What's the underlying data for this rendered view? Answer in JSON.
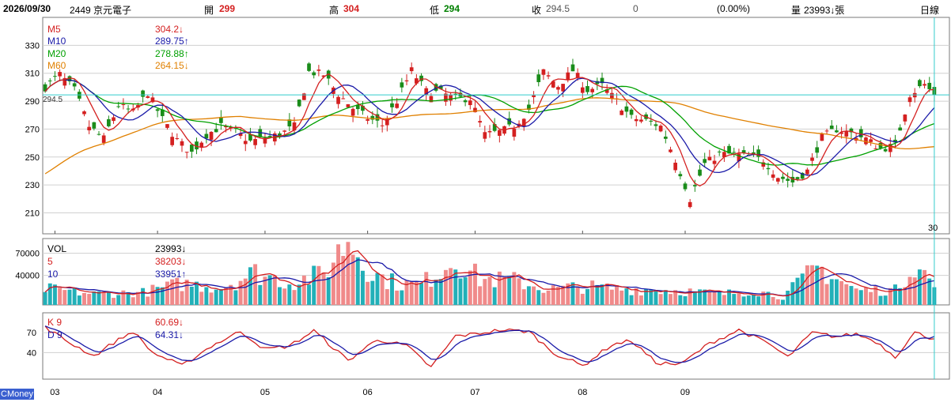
{
  "header": {
    "date": "2026/09/30",
    "stock": "2449 京元電子",
    "open_label": "開",
    "open": "299",
    "high_label": "高",
    "high": "304",
    "low_label": "低",
    "low": "294",
    "close_label": "收",
    "close": "294.5",
    "change": "0",
    "change_pct": "(0.00%)",
    "volume_label": "量",
    "volume": "23993↓張",
    "period": "日線"
  },
  "price_legend": [
    {
      "label": "M5",
      "value": "304.2↓",
      "color": "#d42020"
    },
    {
      "label": "M10",
      "value": "289.75↑",
      "color": "#1a1aa8"
    },
    {
      "label": "M20",
      "value": "278.88↑",
      "color": "#00a000"
    },
    {
      "label": "M60",
      "value": "264.15↓",
      "color": "#e08000"
    }
  ],
  "vol_legend": [
    {
      "label": "VOL",
      "value": "23993↓",
      "color": "#000000"
    },
    {
      "label": "5",
      "value": "38203↓",
      "color": "#d42020"
    },
    {
      "label": "10",
      "value": "33951↑",
      "color": "#1a1aa8"
    }
  ],
  "kd_legend": [
    {
      "label": "K 9",
      "value": "60.69↓",
      "color": "#d42020"
    },
    {
      "label": "D 9",
      "value": "64.31↓",
      "color": "#1a1aa8"
    }
  ],
  "price_marker": "294.5",
  "last_day_label": "30",
  "brand": "CMoney",
  "colors": {
    "up": "#d42020",
    "down": "#1a8c1a",
    "vol_up": "#f08a8a",
    "vol_down": "#22b0b8",
    "cursor": "#33cccc"
  },
  "chart_data": {
    "type": "candlestick",
    "x_labels": [
      "03",
      "04",
      "05",
      "06",
      "07",
      "08",
      "09"
    ],
    "price_axis": {
      "ticks": [
        210,
        230,
        250,
        270,
        290,
        310,
        330
      ],
      "range": [
        195,
        350
      ]
    },
    "volume_axis": {
      "ticks": [
        40000,
        70000
      ],
      "range": [
        0,
        90000
      ]
    },
    "kd_axis": {
      "ticks": [
        40,
        70
      ],
      "range": [
        0,
        100
      ]
    },
    "price_keypoints": [
      [
        0,
        300
      ],
      [
        3,
        309
      ],
      [
        6,
        298
      ],
      [
        9,
        272
      ],
      [
        12,
        263
      ],
      [
        15,
        287
      ],
      [
        18,
        282
      ],
      [
        21,
        296
      ],
      [
        24,
        277
      ],
      [
        27,
        262
      ],
      [
        30,
        253
      ],
      [
        33,
        266
      ],
      [
        36,
        272
      ],
      [
        39,
        268
      ],
      [
        42,
        261
      ],
      [
        45,
        264
      ],
      [
        48,
        266
      ],
      [
        51,
        272
      ],
      [
        54,
        311
      ],
      [
        57,
        309
      ],
      [
        60,
        295
      ],
      [
        63,
        285
      ],
      [
        66,
        278
      ],
      [
        69,
        273
      ],
      [
        72,
        290
      ],
      [
        75,
        312
      ],
      [
        78,
        297
      ],
      [
        81,
        296
      ],
      [
        84,
        292
      ],
      [
        87,
        292
      ],
      [
        90,
        266
      ],
      [
        93,
        268
      ],
      [
        96,
        272
      ],
      [
        99,
        284
      ],
      [
        102,
        311
      ],
      [
        105,
        301
      ],
      [
        108,
        312
      ],
      [
        111,
        298
      ],
      [
        114,
        301
      ],
      [
        117,
        290
      ],
      [
        120,
        278
      ],
      [
        123,
        276
      ],
      [
        126,
        272
      ],
      [
        129,
        248
      ],
      [
        132,
        220
      ],
      [
        135,
        245
      ],
      [
        138,
        252
      ],
      [
        141,
        252
      ],
      [
        144,
        250
      ],
      [
        147,
        248
      ],
      [
        150,
        236
      ],
      [
        153,
        232
      ],
      [
        156,
        240
      ],
      [
        159,
        264
      ],
      [
        162,
        270
      ],
      [
        165,
        267
      ],
      [
        168,
        263
      ],
      [
        171,
        256
      ],
      [
        174,
        258
      ],
      [
        177,
        295
      ],
      [
        180,
        302
      ],
      [
        182,
        294.5
      ]
    ],
    "volume_keypoints": [
      [
        0,
        22000
      ],
      [
        10,
        15000
      ],
      [
        20,
        17000
      ],
      [
        28,
        29000
      ],
      [
        36,
        24000
      ],
      [
        43,
        44000
      ],
      [
        50,
        30000
      ],
      [
        57,
        42000
      ],
      [
        62,
        90000
      ],
      [
        67,
        42000
      ],
      [
        72,
        29000
      ],
      [
        77,
        28000
      ],
      [
        84,
        63000
      ],
      [
        89,
        35000
      ],
      [
        96,
        33000
      ],
      [
        103,
        21000
      ],
      [
        110,
        25000
      ],
      [
        117,
        22000
      ],
      [
        124,
        21000
      ],
      [
        131,
        19000
      ],
      [
        138,
        14000
      ],
      [
        145,
        20000
      ],
      [
        151,
        11000
      ],
      [
        158,
        51000
      ],
      [
        166,
        20000
      ],
      [
        174,
        20000
      ],
      [
        178,
        59000
      ],
      [
        182,
        23993
      ]
    ],
    "kd_keypoints": [
      [
        0,
        78
      ],
      [
        5,
        55
      ],
      [
        10,
        35
      ],
      [
        14,
        55
      ],
      [
        18,
        72
      ],
      [
        22,
        40
      ],
      [
        28,
        20
      ],
      [
        34,
        50
      ],
      [
        40,
        72
      ],
      [
        45,
        45
      ],
      [
        50,
        50
      ],
      [
        55,
        73
      ],
      [
        62,
        28
      ],
      [
        68,
        60
      ],
      [
        74,
        50
      ],
      [
        79,
        18
      ],
      [
        84,
        65
      ],
      [
        88,
        68
      ],
      [
        93,
        74
      ],
      [
        99,
        72
      ],
      [
        104,
        40
      ],
      [
        110,
        20
      ],
      [
        116,
        52
      ],
      [
        120,
        58
      ],
      [
        125,
        25
      ],
      [
        130,
        22
      ],
      [
        136,
        54
      ],
      [
        142,
        74
      ],
      [
        148,
        54
      ],
      [
        152,
        33
      ],
      [
        157,
        70
      ],
      [
        162,
        64
      ],
      [
        166,
        68
      ],
      [
        170,
        57
      ],
      [
        174,
        34
      ],
      [
        178,
        70
      ],
      [
        182,
        60.69
      ]
    ],
    "last_close": 294.5,
    "last_volume": 23993,
    "last_k": 60.69,
    "last_d": 64.31
  }
}
